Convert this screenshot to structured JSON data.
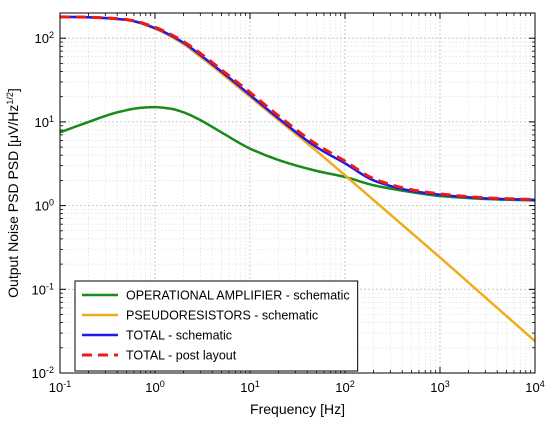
{
  "chart_data": {
    "type": "line",
    "x_scale": "log",
    "y_scale": "log",
    "xlim": [
      0.1,
      10000
    ],
    "ylim": [
      0.01,
      200
    ],
    "xlabel": "Frequency [Hz]",
    "ylabel": "Output Noise PSD PSD [μV/Hz",
    "ylabel_exp": "1/2",
    "ylabel_close": "]",
    "grid": true,
    "legend_position": "bottom-left",
    "x_ticks": [
      {
        "base": "10",
        "exp": "-1",
        "value": 0.1
      },
      {
        "base": "10",
        "exp": "0",
        "value": 1
      },
      {
        "base": "10",
        "exp": "1",
        "value": 10
      },
      {
        "base": "10",
        "exp": "2",
        "value": 100
      },
      {
        "base": "10",
        "exp": "3",
        "value": 1000
      },
      {
        "base": "10",
        "exp": "4",
        "value": 10000
      }
    ],
    "y_ticks": [
      {
        "base": "10",
        "exp": "-2",
        "value": 0.01
      },
      {
        "base": "10",
        "exp": "-1",
        "value": 0.1
      },
      {
        "base": "10",
        "exp": "0",
        "value": 1
      },
      {
        "base": "10",
        "exp": "1",
        "value": 10
      },
      {
        "base": "10",
        "exp": "2",
        "value": 100
      }
    ],
    "series": [
      {
        "name": "OPERATIONAL AMPLIFIER - schematic",
        "color": "#1a8a1a",
        "style": "solid",
        "x": [
          0.1,
          0.2,
          0.4,
          0.7,
          1,
          1.5,
          2,
          3,
          5,
          10,
          20,
          50,
          100,
          200,
          500,
          1000,
          3000,
          10000
        ],
        "y": [
          7.5,
          10,
          13,
          14.7,
          15,
          14.3,
          13,
          10.5,
          7.5,
          4.8,
          3.5,
          2.6,
          2.2,
          1.75,
          1.45,
          1.3,
          1.2,
          1.15
        ]
      },
      {
        "name": "PSEUDORESISTORS - schematic",
        "color": "#f0ac1a",
        "style": "solid",
        "x": [
          0.1,
          0.2,
          0.5,
          1,
          2,
          3,
          5,
          10,
          20,
          50,
          100,
          1000,
          10000
        ],
        "y": [
          180,
          177,
          165,
          130,
          85,
          60,
          38,
          20,
          10.5,
          4.5,
          2.3,
          0.24,
          0.024
        ]
      },
      {
        "name": "TOTAL - schematic",
        "color": "#1a1aee",
        "style": "solid",
        "x": [
          0.1,
          0.2,
          0.5,
          1,
          2,
          3,
          5,
          10,
          20,
          50,
          100,
          200,
          500,
          1000,
          3000,
          10000
        ],
        "y": [
          180,
          178,
          166,
          132,
          88,
          63,
          40,
          21,
          11,
          5,
          3.2,
          2,
          1.5,
          1.35,
          1.22,
          1.17
        ]
      },
      {
        "name": "TOTAL - post layout",
        "color": "#ee1a1a",
        "style": "dashed",
        "x": [
          0.1,
          0.2,
          0.5,
          1,
          2,
          3,
          5,
          10,
          20,
          50,
          100,
          200,
          500,
          1000,
          3000,
          10000
        ],
        "y": [
          180,
          178,
          167,
          135,
          91,
          66,
          42,
          22.5,
          11.8,
          5.4,
          3.4,
          2.1,
          1.55,
          1.38,
          1.24,
          1.18
        ]
      }
    ]
  }
}
